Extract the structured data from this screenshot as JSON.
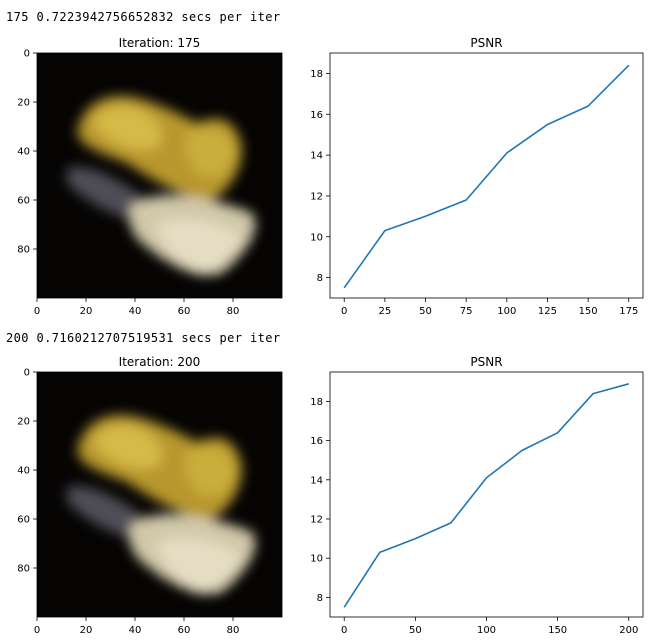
{
  "logs": [
    "175 0.7223942756652832 secs per iter",
    "200 0.7160212707519531 secs per iter"
  ],
  "chart_data": [
    {
      "type": "image",
      "title": "Iteration: 175",
      "xticks": [
        0,
        20,
        40,
        60,
        80
      ],
      "yticks": [
        0,
        20,
        40,
        60,
        80
      ],
      "xlim": [
        0,
        100
      ],
      "ylim": [
        100,
        0
      ]
    },
    {
      "type": "line",
      "title": "PSNR",
      "x": [
        0,
        25,
        50,
        75,
        100,
        125,
        150,
        175
      ],
      "series": [
        {
          "values": [
            7.5,
            10.3,
            11.0,
            11.8,
            14.1,
            15.5,
            16.4,
            18.4
          ],
          "color": "#1f77b4"
        }
      ],
      "xticks": [
        0,
        25,
        50,
        75,
        100,
        125,
        150,
        175
      ],
      "yticks": [
        8,
        10,
        12,
        14,
        16,
        18
      ],
      "xlim": [
        -8.75,
        183.75
      ],
      "ylim": [
        7.0,
        19.0
      ]
    },
    {
      "type": "image",
      "title": "Iteration: 200",
      "xticks": [
        0,
        20,
        40,
        60,
        80
      ],
      "yticks": [
        0,
        20,
        40,
        60,
        80
      ],
      "xlim": [
        0,
        100
      ],
      "ylim": [
        100,
        0
      ]
    },
    {
      "type": "line",
      "title": "PSNR",
      "x": [
        0,
        25,
        50,
        75,
        100,
        125,
        150,
        175,
        200
      ],
      "series": [
        {
          "values": [
            7.5,
            10.3,
            11.0,
            11.8,
            14.1,
            15.5,
            16.4,
            18.4,
            18.9
          ],
          "color": "#1f77b4"
        }
      ],
      "xticks": [
        0,
        50,
        100,
        150,
        200
      ],
      "yticks": [
        8,
        10,
        12,
        14,
        16,
        18
      ],
      "xlim": [
        -10,
        210
      ],
      "ylim": [
        7.0,
        19.5
      ]
    }
  ]
}
